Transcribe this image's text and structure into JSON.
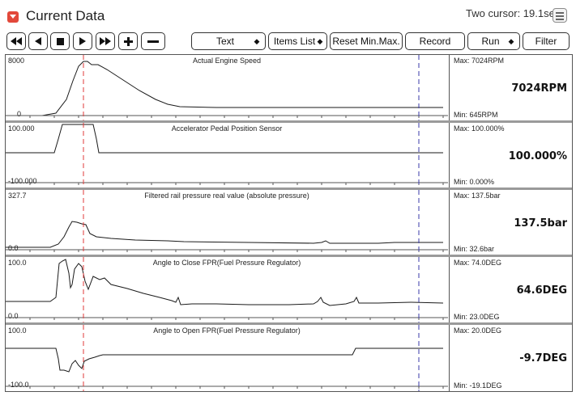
{
  "window": {
    "title": "Current Data",
    "cursor_info": "Two cursor: 19.1sec"
  },
  "toolbar": {
    "text_dropdown": "Text",
    "items_list_dropdown": "Items List",
    "reset_label": "Reset Min.Max.",
    "record_label": "Record",
    "run_dropdown": "Run",
    "filter_label": "Filter"
  },
  "channels": [
    {
      "name": "Actual Engine Speed",
      "top": "8000",
      "bottom": "0",
      "max": "Max: 7024RPM",
      "min": "Min: 645RPM",
      "current": "7024RPM"
    },
    {
      "name": "Accelerator Pedal Position Sensor",
      "top": "100.000",
      "bottom": "-100.000",
      "max": "Max: 100.000%",
      "min": "Min: 0.000%",
      "current": "100.000%"
    },
    {
      "name": "Filtered rail pressure real value (absolute pressure)",
      "top": "327.7",
      "bottom": "0.0",
      "max": "Max: 137.5bar",
      "min": "Min: 32.6bar",
      "current": "137.5bar"
    },
    {
      "name": "Angle to Close FPR(Fuel Pressure Regulator)",
      "top": "100.0",
      "bottom": "0.0",
      "max": "Max: 74.0DEG",
      "min": "Min: 23.0DEG",
      "current": "64.6DEG"
    },
    {
      "name": "Angle to Open FPR(Fuel Pressure Regulator)",
      "top": "100.0",
      "bottom": "-100.0",
      "max": "Max: 20.0DEG",
      "min": "Min: -19.1DEG",
      "current": "-9.7DEG"
    }
  ],
  "colors": {
    "cursor_a": "#e03a3a",
    "cursor_b": "#3a3aa8",
    "trace": "#1a1a1a"
  },
  "icons": {
    "title": "dropdown-arrow-icon",
    "menu": "menu-icon"
  }
}
